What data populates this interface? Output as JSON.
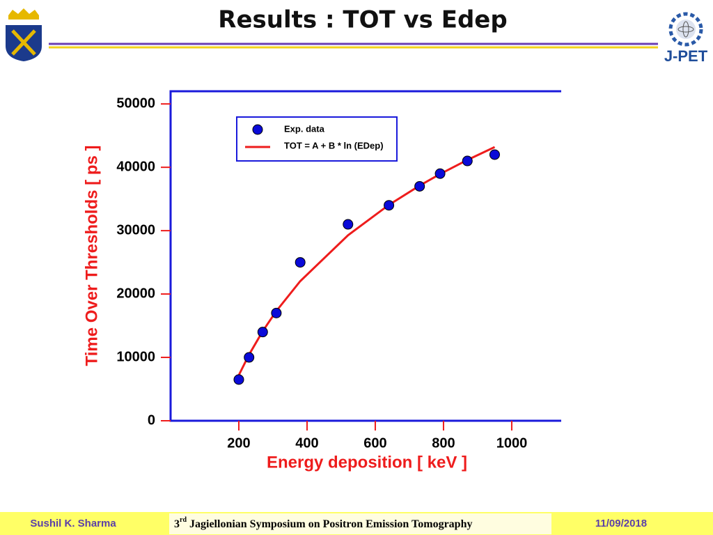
{
  "chart_data": {
    "type": "scatter",
    "title": "Results :  TOT vs Edep",
    "x_label": "Energy deposition [ keV ]",
    "y_label": "Time Over Thresholds [ ps ]",
    "xlim": [
      0,
      1145
    ],
    "ylim": [
      0,
      52000
    ],
    "xticks": [
      200,
      400,
      600,
      800,
      1000
    ],
    "yticks": [
      0,
      10000,
      20000,
      30000,
      40000,
      50000
    ],
    "axis_color": "#1a1adb",
    "label_color": "#ee1c1c",
    "series": [
      {
        "name": "Exp. data",
        "mark": "point",
        "color": "#0a0ad8",
        "x": [
          200,
          230,
          270,
          310,
          380,
          520,
          640,
          730,
          790,
          870,
          950
        ],
        "values": [
          6500,
          10000,
          14000,
          17000,
          25000,
          31000,
          34000,
          37000,
          39000,
          41000,
          42000
        ]
      },
      {
        "name": "TOT = A + B * ln (EDep)",
        "mark": "line",
        "color": "#ee1c1c",
        "x": [
          200,
          230,
          270,
          310,
          380,
          520,
          640,
          730,
          790,
          870,
          950
        ],
        "values": [
          7200,
          10430,
          14130,
          17320,
          22030,
          29270,
          34070,
          37110,
          38940,
          41160,
          43190
        ]
      }
    ]
  },
  "logo": {
    "text": "J-PET"
  },
  "footer": {
    "author": "Sushil K. Sharma",
    "event_ordinal": "3",
    "event_suffix": "rd",
    "event_name": " Jagiellonian Symposium on Positron Emission Tomography",
    "date": "11/09/2018"
  }
}
